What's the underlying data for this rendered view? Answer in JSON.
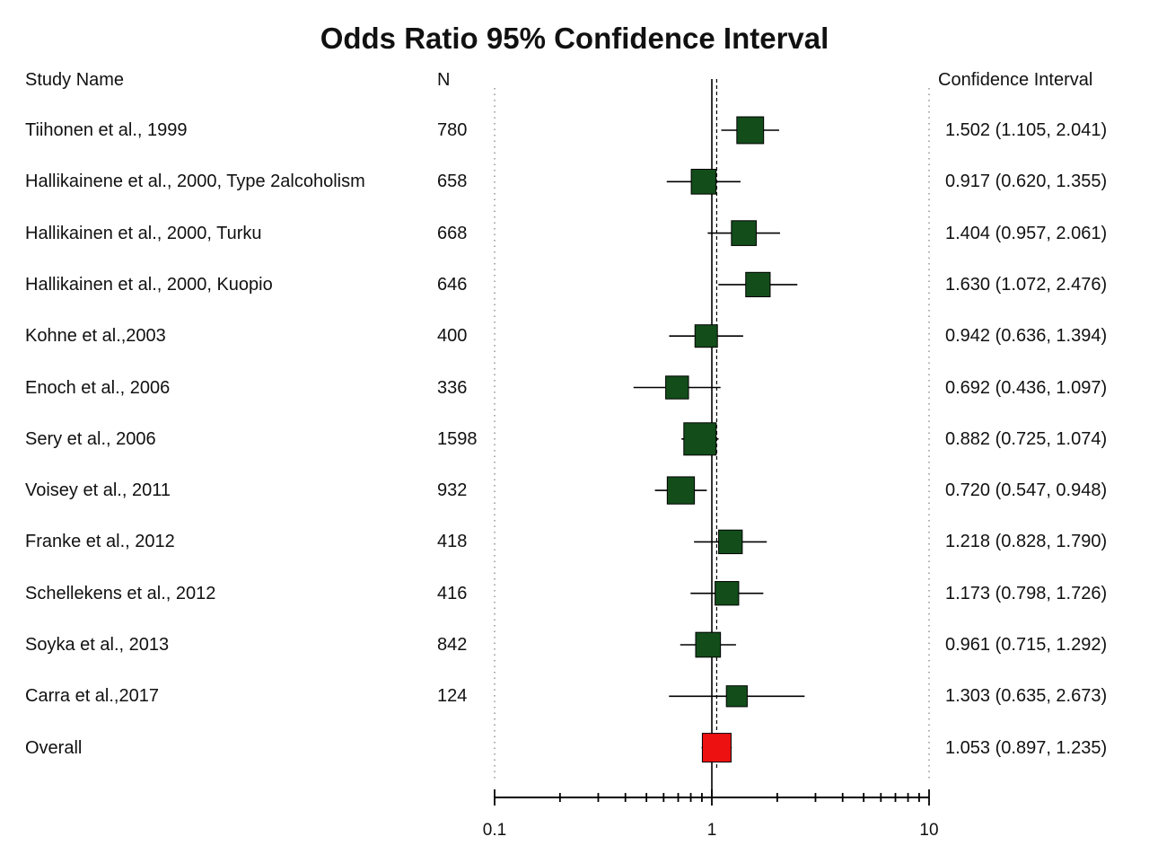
{
  "chart_data": {
    "type": "forest",
    "title": "Odds Ratio 95% Confidence Interval",
    "columns": {
      "study": "Study Name",
      "n": "N",
      "ci": "Confidence Interval"
    },
    "xscale": "log",
    "xlim": [
      0.1,
      10
    ],
    "xticks": [
      "0.1",
      "1",
      "10"
    ],
    "reference_line": 1,
    "overall_line": 1.053,
    "colors": {
      "study": "#124d1a",
      "overall": "#ee1111",
      "line": "#000000"
    },
    "rows": [
      {
        "name": "Tiihonen et al., 1999",
        "n": "780",
        "ci_text": "1.502 (1.105, 2.041)",
        "or": 1.502,
        "lo": 1.105,
        "hi": 2.041,
        "weight": 0.72
      },
      {
        "name": "Hallikainene et al., 2000, Type 2alcoholism",
        "n": "658",
        "ci_text": "0.917 (0.620, 1.355)",
        "or": 0.917,
        "lo": 0.62,
        "hi": 1.355,
        "weight": 0.62
      },
      {
        "name": "Hallikainen et al., 2000, Turku",
        "n": "668",
        "ci_text": "1.404 (0.957, 2.061)",
        "or": 1.404,
        "lo": 0.957,
        "hi": 2.061,
        "weight": 0.62
      },
      {
        "name": "Hallikainen et al., 2000, Kuopio",
        "n": "646",
        "ci_text": "1.630 (1.072, 2.476)",
        "or": 1.63,
        "lo": 1.072,
        "hi": 2.476,
        "weight": 0.6
      },
      {
        "name": "Kohne et al.,2003",
        "n": "400",
        "ci_text": "0.942 (0.636, 1.394)",
        "or": 0.942,
        "lo": 0.636,
        "hi": 1.394,
        "weight": 0.5
      },
      {
        "name": "Enoch et al., 2006",
        "n": "336",
        "ci_text": "0.692 (0.436, 1.097)",
        "or": 0.692,
        "lo": 0.436,
        "hi": 1.097,
        "weight": 0.52
      },
      {
        "name": "Sery et al., 2006",
        "n": "1598",
        "ci_text": "0.882 (0.725, 1.074)",
        "or": 0.882,
        "lo": 0.725,
        "hi": 1.074,
        "weight": 1.0
      },
      {
        "name": "Voisey et al., 2011",
        "n": "932",
        "ci_text": "0.720 (0.547, 0.948)",
        "or": 0.72,
        "lo": 0.547,
        "hi": 0.948,
        "weight": 0.74
      },
      {
        "name": "Franke et al., 2012",
        "n": "418",
        "ci_text": "1.218 (0.828, 1.790)",
        "or": 1.218,
        "lo": 0.828,
        "hi": 1.79,
        "weight": 0.56
      },
      {
        "name": "Schellekens et al., 2012",
        "n": "416",
        "ci_text": "1.173 (0.798, 1.726)",
        "or": 1.173,
        "lo": 0.798,
        "hi": 1.726,
        "weight": 0.56
      },
      {
        "name": "Soyka et al., 2013",
        "n": "842",
        "ci_text": "0.961 (0.715, 1.292)",
        "or": 0.961,
        "lo": 0.715,
        "hi": 1.292,
        "weight": 0.62
      },
      {
        "name": "Carra et al.,2017",
        "n": "124",
        "ci_text": "1.303 (0.635, 2.673)",
        "or": 1.303,
        "lo": 0.635,
        "hi": 2.673,
        "weight": 0.42
      }
    ],
    "overall": {
      "name": "Overall",
      "n": "",
      "ci_text": "1.053 (0.897, 1.235)",
      "or": 1.053,
      "lo": 0.897,
      "hi": 1.235
    }
  }
}
